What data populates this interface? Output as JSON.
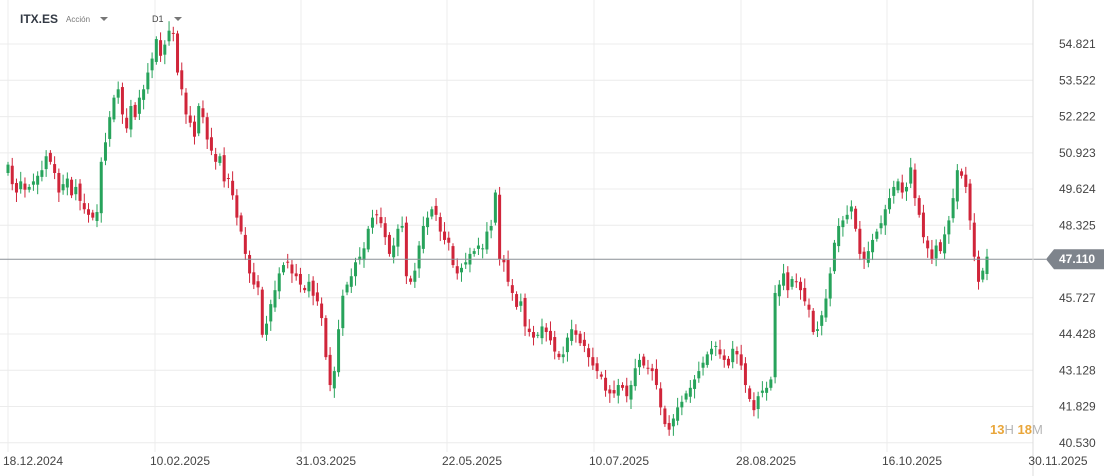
{
  "header": {
    "symbol": "ITX.ES",
    "type": "Acción",
    "timeframe": "D1"
  },
  "countdown": {
    "hours": "13",
    "hours_unit": "H",
    "minutes": "18",
    "minutes_unit": "M"
  },
  "colors": {
    "up": "#27a35b",
    "down": "#d0253a",
    "grid": "#ececec",
    "price_line": "#8a8f96",
    "price_label": "#7e848c"
  },
  "chart_data": {
    "type": "candlestick",
    "title": "",
    "xlabel": "",
    "ylabel": "",
    "y_axis_position": "right",
    "ylim": [
      40.2,
      56.4
    ],
    "grid": true,
    "y_ticks": [
      54.821,
      53.522,
      52.222,
      50.923,
      49.624,
      48.325,
      45.727,
      44.428,
      43.128,
      41.829,
      40.53
    ],
    "x_ticks": [
      "18.12.2024",
      "10.02.2025",
      "31.03.2025",
      "22.05.2025",
      "10.07.2025",
      "28.08.2025",
      "16.10.2025",
      "30.11.2025"
    ],
    "current_price": 47.11,
    "current_price_label": "47.110",
    "closes": [
      50.5,
      49.8,
      49.5,
      49.9,
      49.6,
      49.7,
      49.9,
      50.1,
      50.3,
      50.8,
      50.6,
      50.2,
      49.5,
      49.8,
      50.0,
      49.4,
      49.7,
      49.2,
      48.9,
      48.7,
      48.6,
      48.8,
      50.6,
      51.3,
      52.2,
      52.9,
      53.2,
      52.3,
      51.8,
      52.6,
      52.2,
      52.9,
      53.2,
      53.8,
      54.3,
      55.0,
      54.4,
      54.8,
      55.3,
      55.2,
      53.8,
      53.2,
      52.3,
      52.0,
      51.5,
      52.6,
      52.2,
      51.4,
      51.0,
      50.6,
      50.8,
      49.9,
      50.0,
      49.4,
      48.6,
      48.1,
      47.3,
      46.6,
      46.2,
      46.1,
      44.4,
      44.8,
      45.5,
      46.0,
      46.6,
      46.9,
      47.0,
      46.6,
      46.5,
      46.2,
      46.0,
      46.3,
      45.8,
      45.6,
      45.0,
      43.6,
      42.6,
      43.1,
      44.6,
      45.8,
      46.2,
      46.5,
      47.0,
      47.2,
      47.5,
      48.2,
      48.6,
      48.7,
      48.4,
      47.9,
      47.3,
      47.6,
      48.2,
      48.3,
      46.5,
      46.3,
      46.7,
      47.6,
      48.3,
      48.6,
      48.9,
      48.7,
      48.1,
      47.8,
      47.7,
      46.9,
      46.6,
      46.8,
      47.0,
      47.3,
      47.4,
      47.6,
      47.5,
      48.1,
      48.3,
      49.5,
      47.1,
      47.0,
      46.3,
      45.9,
      45.4,
      45.6,
      44.7,
      44.5,
      44.3,
      44.4,
      44.7,
      44.5,
      44.2,
      43.8,
      43.6,
      43.7,
      44.3,
      44.6,
      44.4,
      44.1,
      44.0,
      43.6,
      43.3,
      43.1,
      42.9,
      42.4,
      42.3,
      42.3,
      42.6,
      42.5,
      42.2,
      42.6,
      43.2,
      43.5,
      43.3,
      43.2,
      43.1,
      42.6,
      41.8,
      41.2,
      41.0,
      41.4,
      41.8,
      42.0,
      42.3,
      42.5,
      42.8,
      43.1,
      43.4,
      43.7,
      43.9,
      44.0,
      43.7,
      43.5,
      43.3,
      43.9,
      43.7,
      43.3,
      42.6,
      42.1,
      41.7,
      42.2,
      42.4,
      42.5,
      42.8,
      45.9,
      46.2,
      46.6,
      46.0,
      46.4,
      46.3,
      46.0,
      45.6,
      45.3,
      44.5,
      44.6,
      45.1,
      45.7,
      46.6,
      47.7,
      48.3,
      48.5,
      48.7,
      49.0,
      48.2,
      47.3,
      47.1,
      47.4,
      47.8,
      48.1,
      48.4,
      48.9,
      49.3,
      49.7,
      49.9,
      49.5,
      49.7,
      50.4,
      49.3,
      48.7,
      47.9,
      47.5,
      47.1,
      47.6,
      47.4,
      48.0,
      48.5,
      49.3,
      50.3,
      50.1,
      49.7,
      48.5,
      47.2,
      46.3,
      46.7,
      47.2
    ]
  }
}
